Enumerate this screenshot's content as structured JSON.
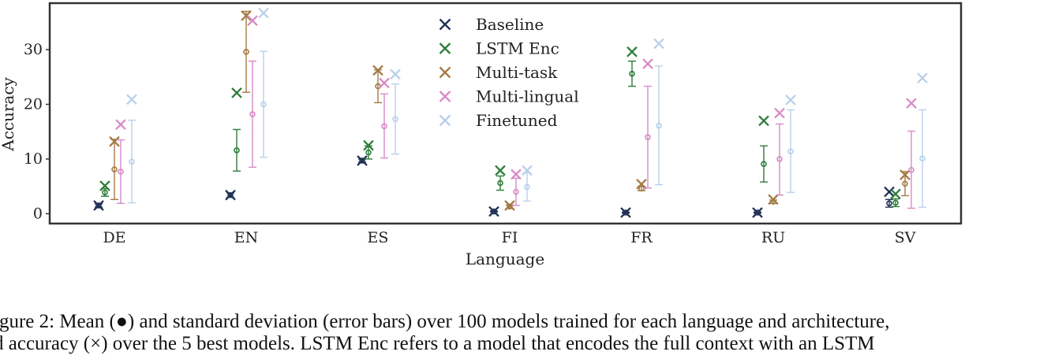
{
  "chart_data": {
    "type": "scatter",
    "xlabel": "Language",
    "ylabel": "Accuracy",
    "ylim": [
      -1.8,
      38.5
    ],
    "yticks": [
      0,
      10,
      20,
      30
    ],
    "grid": false,
    "legend_placement": "top-center",
    "categories": [
      "DE",
      "EN",
      "ES",
      "FI",
      "FR",
      "RU",
      "SV"
    ],
    "series": [
      {
        "name": "Baseline",
        "color": "#1f3055",
        "best": [
          1.5,
          3.4,
          9.7,
          0.4,
          0.2,
          0.2,
          4.0
        ],
        "mean": [
          1.5,
          3.4,
          9.7,
          0.4,
          0.2,
          0.2,
          1.9
        ],
        "std_low": [
          1.2,
          3.0,
          9.4,
          0.3,
          0.1,
          0.1,
          1.2
        ],
        "std_high": [
          1.8,
          3.8,
          10.0,
          0.5,
          0.3,
          0.3,
          2.6
        ]
      },
      {
        "name": "LSTM Enc",
        "color": "#2e7d3a",
        "best": [
          5.1,
          22.1,
          12.5,
          7.9,
          29.6,
          17.0,
          3.6
        ],
        "mean": [
          3.9,
          11.6,
          11.2,
          5.6,
          25.6,
          9.1,
          2.0
        ],
        "std_low": [
          3.2,
          7.8,
          10.0,
          4.3,
          23.3,
          5.8,
          1.3
        ],
        "std_high": [
          4.6,
          15.4,
          12.4,
          6.9,
          27.9,
          12.4,
          2.7
        ]
      },
      {
        "name": "Multi-task",
        "color": "#a47a44",
        "best": [
          13.2,
          36.2,
          26.2,
          1.5,
          5.4,
          2.6,
          7.1
        ],
        "mean": [
          8.1,
          29.6,
          23.3,
          1.3,
          4.6,
          2.2,
          5.5
        ],
        "std_low": [
          2.6,
          22.2,
          20.3,
          1.0,
          4.2,
          1.9,
          3.3
        ],
        "std_high": [
          13.6,
          37.0,
          26.3,
          1.6,
          5.0,
          2.5,
          7.7
        ]
      },
      {
        "name": "Multi-lingual",
        "color": "#d98ac6",
        "best": [
          16.3,
          35.3,
          23.9,
          7.2,
          27.4,
          18.4,
          20.2
        ],
        "mean": [
          7.7,
          18.2,
          16.0,
          4.0,
          14.0,
          10.0,
          8.0
        ],
        "std_low": [
          1.9,
          8.5,
          10.2,
          1.5,
          4.7,
          3.4,
          1.0
        ],
        "std_high": [
          13.5,
          27.9,
          21.9,
          6.5,
          23.3,
          16.4,
          15.1
        ]
      },
      {
        "name": "Finetuned",
        "color": "#b9d0ea",
        "best": [
          20.9,
          36.7,
          25.5,
          7.9,
          31.1,
          20.8,
          24.8
        ],
        "mean": [
          9.5,
          20.0,
          17.3,
          4.9,
          16.1,
          11.4,
          10.1
        ],
        "std_low": [
          2.0,
          10.3,
          10.9,
          2.3,
          5.3,
          3.9,
          1.2
        ],
        "std_high": [
          17.1,
          29.7,
          23.7,
          7.5,
          27.0,
          19.0,
          19.0
        ]
      }
    ]
  },
  "caption": {
    "line1": "igure 2: Mean (●) and standard deviation (error bars) over 100 models trained for each language and architecture,",
    "line2": "d accuracy (×) over the 5 best models. LSTM Enc refers to a model that encodes the full context with an LSTM"
  }
}
